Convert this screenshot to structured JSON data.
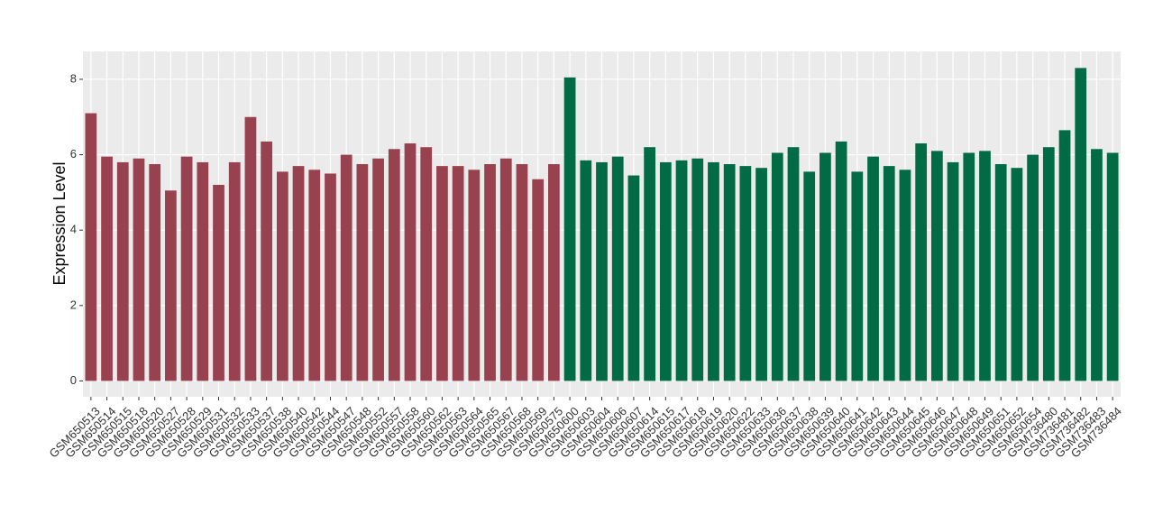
{
  "chart_data": {
    "type": "bar",
    "y_label": "Expression Level",
    "categories": [
      "GSM650513",
      "GSM650514",
      "GSM650515",
      "GSM650518",
      "GSM650520",
      "GSM650527",
      "GSM650528",
      "GSM650529",
      "GSM650531",
      "GSM650532",
      "GSM650533",
      "GSM650537",
      "GSM650538",
      "GSM650540",
      "GSM650542",
      "GSM650544",
      "GSM650547",
      "GSM650548",
      "GSM650552",
      "GSM650557",
      "GSM650558",
      "GSM650560",
      "GSM650562",
      "GSM650563",
      "GSM650564",
      "GSM650565",
      "GSM650567",
      "GSM650568",
      "GSM650569",
      "GSM650575",
      "GSM650600",
      "GSM650603",
      "GSM650604",
      "GSM650606",
      "GSM650607",
      "GSM650614",
      "GSM650615",
      "GSM650617",
      "GSM650618",
      "GSM650619",
      "GSM650620",
      "GSM650622",
      "GSM650633",
      "GSM650636",
      "GSM650637",
      "GSM650638",
      "GSM650639",
      "GSM650640",
      "GSM650641",
      "GSM650642",
      "GSM650643",
      "GSM650644",
      "GSM650645",
      "GSM650646",
      "GSM650647",
      "GSM650648",
      "GSM650649",
      "GSM650651",
      "GSM650652",
      "GSM650654",
      "GSM736480",
      "GSM736481",
      "GSM736482",
      "GSM736483",
      "GSM736484"
    ],
    "values": [
      7.1,
      5.95,
      5.8,
      5.9,
      5.75,
      5.05,
      5.95,
      5.8,
      5.2,
      5.8,
      7.0,
      6.35,
      5.55,
      5.7,
      5.6,
      5.5,
      6.0,
      5.75,
      5.9,
      6.15,
      6.3,
      6.2,
      5.7,
      5.7,
      5.6,
      5.75,
      5.9,
      5.75,
      5.35,
      5.75,
      8.05,
      5.85,
      5.8,
      5.95,
      5.45,
      6.2,
      5.8,
      5.85,
      5.9,
      5.8,
      5.75,
      5.7,
      5.65,
      6.05,
      6.2,
      5.55,
      6.05,
      6.35,
      5.55,
      5.95,
      5.7,
      5.6,
      6.3,
      6.1,
      5.8,
      6.05,
      6.1,
      5.75,
      5.65,
      6.0,
      6.2,
      6.65,
      8.3,
      6.15,
      6.05
    ],
    "colors": [
      "#99424f",
      "#99424f",
      "#99424f",
      "#99424f",
      "#99424f",
      "#99424f",
      "#99424f",
      "#99424f",
      "#99424f",
      "#99424f",
      "#99424f",
      "#99424f",
      "#99424f",
      "#99424f",
      "#99424f",
      "#99424f",
      "#99424f",
      "#99424f",
      "#99424f",
      "#99424f",
      "#99424f",
      "#99424f",
      "#99424f",
      "#99424f",
      "#99424f",
      "#99424f",
      "#99424f",
      "#99424f",
      "#99424f",
      "#99424f",
      "#006b45",
      "#006b45",
      "#006b45",
      "#006b45",
      "#006b45",
      "#006b45",
      "#006b45",
      "#006b45",
      "#006b45",
      "#006b45",
      "#006b45",
      "#006b45",
      "#006b45",
      "#006b45",
      "#006b45",
      "#006b45",
      "#006b45",
      "#006b45",
      "#006b45",
      "#006b45",
      "#006b45",
      "#006b45",
      "#006b45",
      "#006b45",
      "#006b45",
      "#006b45",
      "#006b45",
      "#006b45",
      "#006b45",
      "#006b45",
      "#006b45",
      "#006b45",
      "#006b45",
      "#006b45",
      "#006b45"
    ],
    "ylim": [
      -0.42,
      8.74
    ],
    "yticks": [
      0,
      2,
      4,
      6,
      8
    ],
    "grid": true
  }
}
